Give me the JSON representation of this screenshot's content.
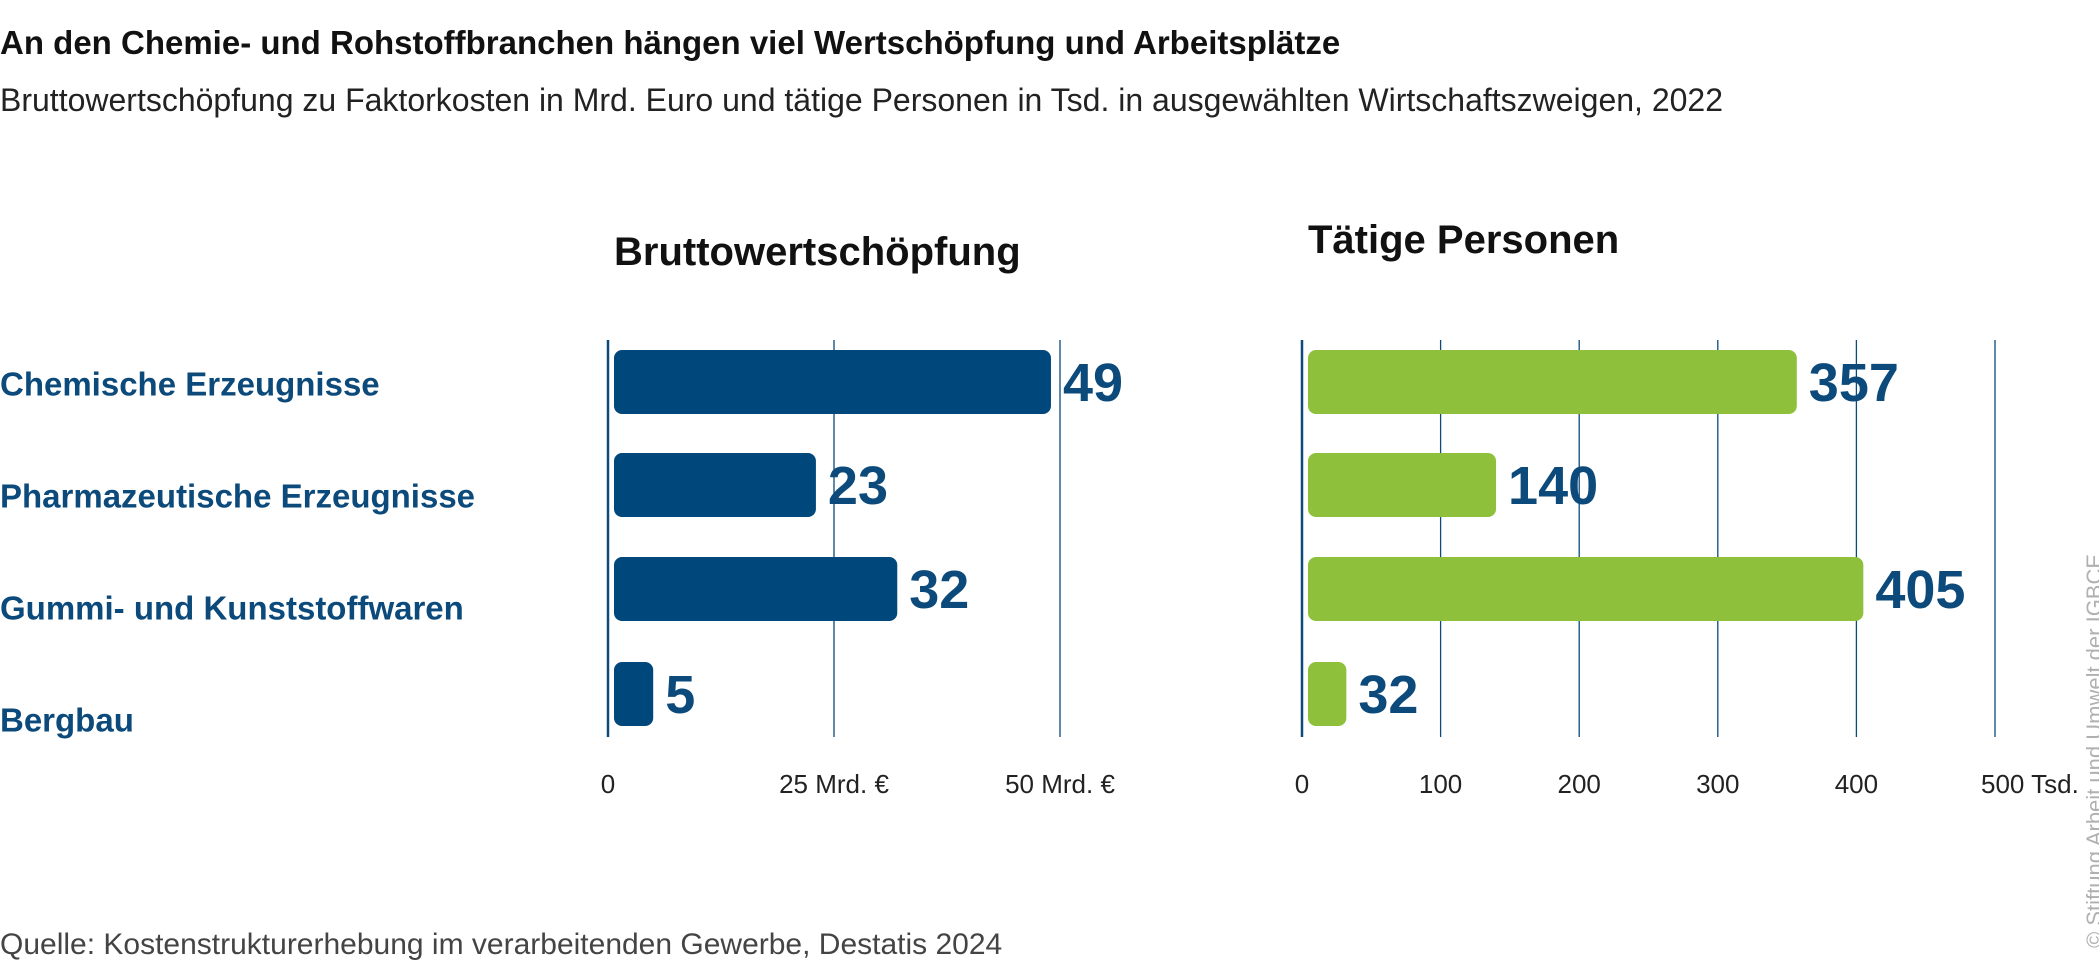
{
  "title": "An den Chemie- und Rohstoffbranchen hängen viel Wertschöpfung und Arbeitsplätze",
  "subtitle": "Bruttowertschöpfung zu Faktorkosten in Mrd. Euro und tätige Personen in Tsd. in ausgewählten Wirtschaftszweigen, 2022",
  "source": "Quelle: Kostenstrukturerhebung im verarbeitenden Gewerbe, Destatis 2024",
  "copyright": "© Stiftung Arbeit und Umwelt der IGBCE",
  "chart_data": {
    "type": "bar",
    "orientation": "horizontal",
    "categories": [
      "Chemische Erzeugnisse",
      "Pharmazeutische Erzeugnisse",
      "Gummi- und Kunststoffwaren",
      "Bergbau"
    ],
    "panels": [
      {
        "title": "Bruttowertschöpfung",
        "values": [
          49,
          23,
          32,
          5
        ],
        "xlim": [
          0,
          50
        ],
        "ticks": [
          0,
          25,
          50
        ],
        "tick_labels": [
          "0",
          "25 Mrd. €",
          "50 Mrd. €"
        ],
        "color": "#00477c",
        "grid": true
      },
      {
        "title": "Tätige Personen",
        "values": [
          357,
          140,
          405,
          32
        ],
        "xlim": [
          0,
          500
        ],
        "ticks": [
          0,
          100,
          200,
          300,
          400,
          500
        ],
        "tick_labels": [
          "0",
          "100",
          "200",
          "300",
          "400",
          "500 Tsd."
        ],
        "color": "#8fc03c",
        "grid": true
      }
    ],
    "label_color": "#0b4a7a",
    "grid_color": "#0b4a7a"
  }
}
